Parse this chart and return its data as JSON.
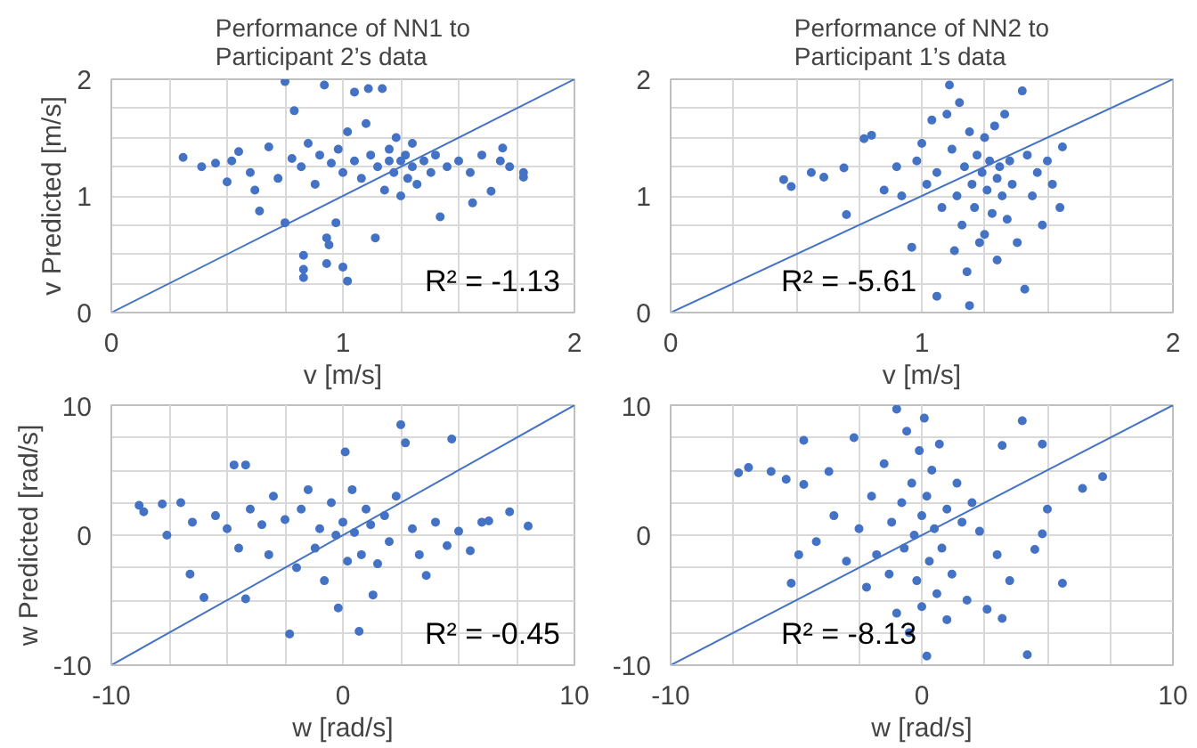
{
  "chart_data": [
    {
      "type": "scatter",
      "title": "Performance of NN1 to\nParticipant 2’s data",
      "xlabel": "v [m/s]",
      "ylabel": "v Predicted [m/s]",
      "xlim": [
        0,
        2
      ],
      "ylim": [
        0,
        2
      ],
      "xticks": [
        0,
        {
          "value": 0.25,
          "label": null
        },
        {
          "value": 0.5,
          "label": null
        },
        {
          "value": 0.75,
          "label": null
        },
        1,
        {
          "value": 1.25,
          "label": null
        },
        {
          "value": 1.5,
          "label": null
        },
        {
          "value": 1.75,
          "label": null
        },
        2
      ],
      "yticks": [
        0,
        {
          "value": 0.25,
          "label": null
        },
        {
          "value": 0.5,
          "label": null
        },
        {
          "value": 0.75,
          "label": null
        },
        1,
        {
          "value": 1.25,
          "label": null
        },
        {
          "value": 1.5,
          "label": null
        },
        {
          "value": 1.75,
          "label": null
        },
        2
      ],
      "grid": true,
      "marker": "circle",
      "annotations": [
        "R² = -1.13"
      ],
      "series": [
        {
          "color": "#4472c4",
          "x": [
            0.31,
            0.39,
            0.45,
            0.5,
            0.52,
            0.55,
            0.6,
            0.62,
            0.64,
            0.68,
            0.72,
            0.75,
            0.75,
            0.78,
            0.79,
            0.82,
            0.83,
            0.83,
            0.83,
            0.85,
            0.88,
            0.9,
            0.92,
            0.93,
            0.93,
            0.94,
            0.95,
            0.97,
            0.98,
            1.0,
            1.0,
            1.02,
            1.02,
            1.05,
            1.05,
            1.08,
            1.1,
            1.11,
            1.12,
            1.14,
            1.15,
            1.17,
            1.18,
            1.2,
            1.2,
            1.22,
            1.23,
            1.25,
            1.25,
            1.27,
            1.28,
            1.3,
            1.3,
            1.32,
            1.35,
            1.38,
            1.4,
            1.42,
            1.45,
            1.5,
            1.55,
            1.56,
            1.6,
            1.64,
            1.68,
            1.69,
            1.72,
            1.78,
            1.78
          ],
          "values": [
            1.33,
            1.25,
            1.28,
            1.12,
            1.3,
            1.38,
            1.2,
            1.05,
            0.87,
            1.42,
            1.15,
            1.98,
            0.77,
            1.32,
            1.73,
            1.25,
            0.49,
            0.37,
            0.3,
            1.45,
            1.1,
            1.35,
            1.95,
            0.42,
            0.64,
            0.58,
            1.28,
            0.77,
            1.4,
            0.39,
            1.2,
            0.27,
            1.55,
            1.89,
            1.3,
            1.15,
            1.62,
            1.92,
            1.35,
            0.64,
            1.25,
            1.92,
            1.05,
            1.3,
            1.4,
            1.2,
            1.5,
            1.0,
            1.3,
            1.35,
            1.15,
            1.25,
            1.45,
            1.1,
            1.3,
            1.2,
            1.35,
            0.82,
            1.25,
            1.3,
            1.2,
            0.94,
            1.35,
            1.04,
            1.3,
            1.41,
            1.25,
            1.2,
            1.16
          ]
        },
        {
          "type": "line",
          "marker": "none",
          "color": "#4472c4",
          "x": [
            0,
            2
          ],
          "values": [
            0,
            2
          ]
        }
      ]
    },
    {
      "type": "scatter",
      "title": "Performance of NN2 to\nParticipant 1’s data",
      "xlabel": "v [m/s]",
      "xlim": [
        0,
        2
      ],
      "ylim": [
        0,
        2
      ],
      "xticks": [
        0,
        {
          "value": 0.25,
          "label": null
        },
        {
          "value": 0.5,
          "label": null
        },
        {
          "value": 0.75,
          "label": null
        },
        1,
        {
          "value": 1.25,
          "label": null
        },
        {
          "value": 1.5,
          "label": null
        },
        {
          "value": 1.75,
          "label": null
        },
        2
      ],
      "yticks": [
        0,
        {
          "value": 0.25,
          "label": null
        },
        {
          "value": 0.5,
          "label": null
        },
        {
          "value": 0.75,
          "label": null
        },
        1,
        {
          "value": 1.25,
          "label": null
        },
        {
          "value": 1.5,
          "label": null
        },
        {
          "value": 1.75,
          "label": null
        },
        2
      ],
      "grid": true,
      "marker": "circle",
      "annotations": [
        "R² = -5.61"
      ],
      "series": [
        {
          "color": "#4472c4",
          "x": [
            0.45,
            0.48,
            0.56,
            0.61,
            0.69,
            0.7,
            0.77,
            0.8,
            0.85,
            0.9,
            0.92,
            0.96,
            0.98,
            1.0,
            1.02,
            1.04,
            1.06,
            1.06,
            1.08,
            1.1,
            1.11,
            1.12,
            1.13,
            1.14,
            1.15,
            1.16,
            1.17,
            1.18,
            1.19,
            1.19,
            1.2,
            1.21,
            1.22,
            1.23,
            1.24,
            1.25,
            1.25,
            1.26,
            1.27,
            1.28,
            1.29,
            1.3,
            1.3,
            1.31,
            1.32,
            1.33,
            1.34,
            1.35,
            1.36,
            1.38,
            1.4,
            1.41,
            1.42,
            1.44,
            1.46,
            1.48,
            1.5,
            1.52,
            1.55,
            1.56
          ],
          "values": [
            1.14,
            1.08,
            1.2,
            1.16,
            1.24,
            0.84,
            1.49,
            1.52,
            1.05,
            1.25,
            1.0,
            0.56,
            1.3,
            1.45,
            1.1,
            1.65,
            0.14,
            1.2,
            0.9,
            1.7,
            1.95,
            1.4,
            0.53,
            1.0,
            1.8,
            0.75,
            1.25,
            0.35,
            0.06,
            1.55,
            1.1,
            0.9,
            1.35,
            0.6,
            1.2,
            0.67,
            1.5,
            1.05,
            1.3,
            0.85,
            1.6,
            1.15,
            0.45,
            1.25,
            1.0,
            1.7,
            0.8,
            1.3,
            1.1,
            0.6,
            1.9,
            0.2,
            1.35,
            1.0,
            1.2,
            0.75,
            1.3,
            1.1,
            0.9,
            1.42
          ]
        },
        {
          "type": "line",
          "marker": "none",
          "color": "#4472c4",
          "x": [
            0,
            2
          ],
          "values": [
            0,
            2
          ]
        }
      ]
    },
    {
      "type": "scatter",
      "xlabel": "w [rad/s]",
      "ylabel": "w Predicted [rad/s]",
      "xlim": [
        -10,
        10
      ],
      "ylim": [
        -10,
        10
      ],
      "xticks": [
        -10,
        {
          "value": -7.5,
          "label": null
        },
        {
          "value": -5,
          "label": null
        },
        {
          "value": -2.5,
          "label": null
        },
        0,
        {
          "value": 2.5,
          "label": null
        },
        {
          "value": 5,
          "label": null
        },
        {
          "value": 7.5,
          "label": null
        },
        10
      ],
      "yticks": [
        -10,
        {
          "value": -7.5,
          "label": null
        },
        {
          "value": -5,
          "label": null
        },
        {
          "value": -2.5,
          "label": null
        },
        0,
        {
          "value": 2.5,
          "label": null
        },
        {
          "value": 5,
          "label": null
        },
        {
          "value": 7.5,
          "label": null
        },
        10
      ],
      "grid": true,
      "marker": "circle",
      "annotations": [
        "R² = -0.45"
      ],
      "series": [
        {
          "color": "#4472c4",
          "x": [
            -8.8,
            -8.6,
            -7.8,
            -7.6,
            -7.0,
            -6.6,
            -6.5,
            -6.0,
            -5.5,
            -5.0,
            -4.7,
            -4.5,
            -4.2,
            -4.2,
            -4.0,
            -3.5,
            -3.2,
            -3.0,
            -2.5,
            -2.3,
            -2.0,
            -1.8,
            -1.5,
            -1.2,
            -1.0,
            -0.8,
            -0.5,
            -0.3,
            -0.2,
            0,
            0.1,
            0.2,
            0.4,
            0.5,
            0.7,
            0.8,
            1.0,
            1.2,
            1.3,
            1.5,
            1.8,
            2.0,
            2.3,
            2.5,
            2.7,
            3.0,
            3.3,
            3.6,
            4.0,
            4.5,
            4.7,
            5.0,
            5.5,
            6.0,
            6.3,
            7.2,
            8.0
          ],
          "values": [
            2.3,
            1.8,
            2.4,
            0,
            2.5,
            -3,
            1.0,
            -4.8,
            1.5,
            0.5,
            5.4,
            -1.0,
            5.4,
            -4.9,
            2.0,
            0.8,
            -1.5,
            3.0,
            1.2,
            -7.6,
            -2.5,
            2.0,
            3.5,
            -1.0,
            0.5,
            -3.5,
            2.5,
            0,
            -5.6,
            1.0,
            6.4,
            -2,
            3.5,
            0.2,
            -7.4,
            -1.5,
            2.0,
            0.8,
            -4.6,
            -2.2,
            1.5,
            -0.5,
            3.0,
            8.5,
            7.1,
            0.5,
            -1.5,
            -3.1,
            1.0,
            -0.8,
            7.4,
            0.3,
            -1.2,
            1.0,
            1.1,
            1.8,
            0.7
          ]
        },
        {
          "type": "line",
          "marker": "none",
          "color": "#4472c4",
          "x": [
            -10,
            10
          ],
          "values": [
            -10,
            10
          ]
        }
      ]
    },
    {
      "type": "scatter",
      "xlabel": "w [rad/s]",
      "xlim": [
        -10,
        10
      ],
      "ylim": [
        -10,
        10
      ],
      "xticks": [
        -10,
        {
          "value": -7.5,
          "label": null
        },
        {
          "value": -5,
          "label": null
        },
        {
          "value": -2.5,
          "label": null
        },
        0,
        {
          "value": 2.5,
          "label": null
        },
        {
          "value": 5,
          "label": null
        },
        {
          "value": 7.5,
          "label": null
        },
        10
      ],
      "yticks": [
        -10,
        {
          "value": -7.5,
          "label": null
        },
        {
          "value": -5,
          "label": null
        },
        {
          "value": -2.5,
          "label": null
        },
        0,
        {
          "value": 2.5,
          "label": null
        },
        {
          "value": 5,
          "label": null
        },
        {
          "value": 7.5,
          "label": null
        },
        10
      ],
      "grid": true,
      "marker": "circle",
      "annotations": [
        "R² = -8.13"
      ],
      "series": [
        {
          "color": "#4472c4",
          "x": [
            -7.3,
            -6.9,
            -6.0,
            -5.4,
            -5.2,
            -4.9,
            -4.7,
            -4.7,
            -4.2,
            -3.7,
            -3.5,
            -3.0,
            -2.7,
            -2.5,
            -2.2,
            -2.0,
            -1.8,
            -1.5,
            -1.3,
            -1.2,
            -1.0,
            -1.0,
            -0.8,
            -0.7,
            -0.6,
            -0.5,
            -0.4,
            -0.3,
            -0.2,
            -0.1,
            0,
            0,
            0.1,
            0.2,
            0.2,
            0.3,
            0.4,
            0.5,
            0.6,
            0.7,
            0.8,
            1.0,
            1.0,
            1.2,
            1.4,
            1.6,
            1.8,
            2.0,
            2.3,
            2.6,
            3.0,
            3.2,
            3.2,
            3.5,
            4.0,
            4.2,
            4.5,
            4.8,
            4.8,
            5.0,
            5.6,
            6.4,
            7.2
          ],
          "values": [
            4.8,
            5.2,
            4.9,
            4.3,
            -3.7,
            -1.5,
            7.3,
            3.9,
            -0.5,
            4.9,
            1.5,
            -2.0,
            7.5,
            0.5,
            -4.0,
            3.0,
            -1.5,
            5.5,
            -3.0,
            1.0,
            9.7,
            -6.0,
            2.5,
            -1.0,
            8.0,
            -7.5,
            4.0,
            0,
            -3.5,
            6.5,
            1.5,
            -5.5,
            9.0,
            -9.3,
            3.0,
            -2.0,
            5.0,
            0.5,
            -4.5,
            7.0,
            -1.0,
            2.0,
            -6.5,
            -3.0,
            4.0,
            1.0,
            -5.0,
            2.5,
            0.3,
            -5.7,
            -1.5,
            6.9,
            -6.4,
            -3.5,
            8.8,
            -9.2,
            -1.1,
            0.1,
            7.0,
            2.0,
            -3.7,
            3.6,
            4.5
          ]
        },
        {
          "type": "line",
          "marker": "none",
          "color": "#4472c4",
          "x": [
            -10,
            10
          ],
          "values": [
            -10,
            10
          ]
        }
      ]
    }
  ]
}
